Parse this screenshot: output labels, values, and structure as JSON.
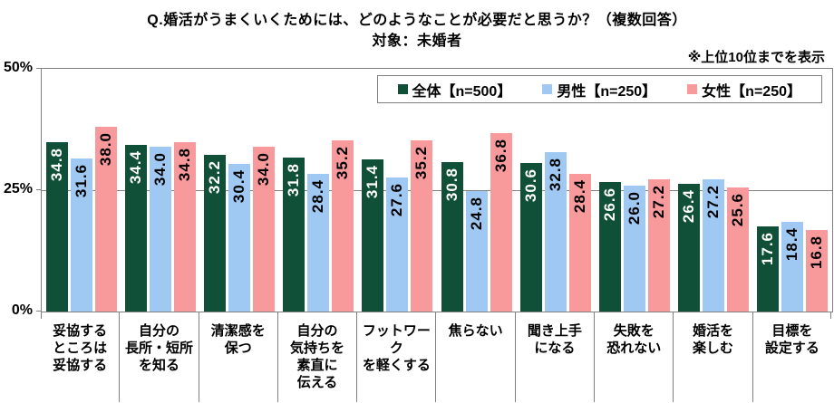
{
  "header": {
    "title": "Q.婚活がうまくいくためには、どのようなことが必要だと思うか？（複数回答）",
    "subtitle": "対象：未婚者",
    "note": "※上位10位までを表示"
  },
  "legend": {
    "position": "top-right",
    "items": [
      {
        "label": "全体【n=500】",
        "color": "#115038"
      },
      {
        "label": "男性【n=250】",
        "color": "#9FC9F3"
      },
      {
        "label": "女性【n=250】",
        "color": "#F8999C"
      }
    ]
  },
  "chart_data": {
    "type": "bar",
    "title": "Q.婚活がうまくいくためには、どのようなことが必要だと思うか？（複数回答）",
    "subtitle": "対象：未婚者",
    "note": "※上位10位までを表示",
    "categories": [
      "妥協するところは妥協する",
      "自分の長所・短所を知る",
      "清潔感を保つ",
      "自分の気持ちを素直に伝える",
      "フットワークを軽くする",
      "焦らない",
      "聞き上手になる",
      "失敗を恐れない",
      "婚活を楽しむ",
      "目標を設定する"
    ],
    "category_lines": [
      [
        "妥協する",
        "ところは",
        "妥協する"
      ],
      [
        "自分の",
        "長所・短所",
        "を知る"
      ],
      [
        "清潔感を",
        "保つ"
      ],
      [
        "自分の",
        "気持ちを",
        "素直に",
        "伝える"
      ],
      [
        "フットワーク",
        "を軽くする"
      ],
      [
        "焦らない"
      ],
      [
        "聞き上手",
        "になる"
      ],
      [
        "失敗を",
        "恐れない"
      ],
      [
        "婚活を",
        "楽しむ"
      ],
      [
        "目標を",
        "設定する"
      ]
    ],
    "series": [
      {
        "name": "全体【n=500】",
        "color": "#115038",
        "value_label_color": "#FFFFFF",
        "values": [
          34.8,
          34.4,
          32.2,
          31.8,
          31.4,
          30.8,
          30.6,
          26.6,
          26.4,
          17.6
        ]
      },
      {
        "name": "男性【n=250】",
        "color": "#9FC9F3",
        "value_label_color": "#000000",
        "values": [
          31.6,
          34.0,
          30.4,
          28.4,
          27.6,
          24.8,
          32.8,
          26.0,
          27.2,
          18.4
        ]
      },
      {
        "name": "女性【n=250】",
        "color": "#F8999C",
        "value_label_color": "#000000",
        "values": [
          38.0,
          34.8,
          34.0,
          35.2,
          35.2,
          36.8,
          28.4,
          27.2,
          25.6,
          16.8
        ]
      }
    ],
    "ylim": [
      0,
      50
    ],
    "ylabel": "",
    "xlabel": "",
    "grid": "horizontal line at 25%",
    "y_axis": {
      "ticks": [
        {
          "value": 50,
          "label": "50%"
        },
        {
          "value": 25,
          "label": "25%"
        },
        {
          "value": 0,
          "label": "0%"
        }
      ]
    },
    "legend_position": "top-right"
  }
}
